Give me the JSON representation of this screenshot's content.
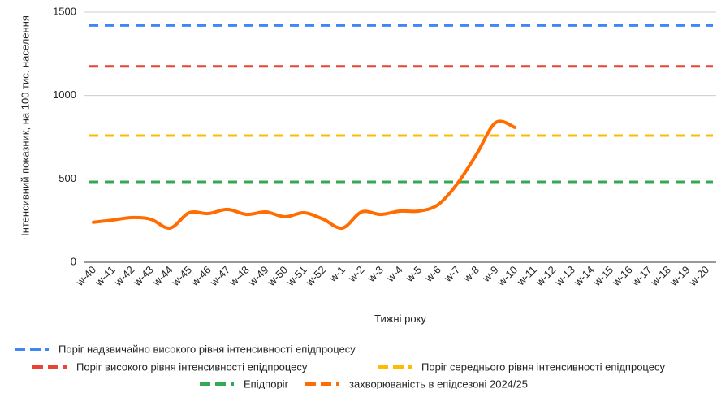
{
  "chart_data": {
    "type": "line",
    "x_label": "Тижні року",
    "y_label": "Інтенсивний показник, на 100 тис. населення",
    "categories": [
      "w-40",
      "w-41",
      "w-42",
      "w-43",
      "w-44",
      "w-45",
      "w-46",
      "w-47",
      "w-48",
      "w-49",
      "w-50",
      "w-51",
      "w-52",
      "w-1",
      "w-2",
      "w-3",
      "w-4",
      "w-5",
      "w-6",
      "w-7",
      "w-8",
      "w-9",
      "w-10",
      "w-11",
      "w-12",
      "w-13",
      "w-14",
      "w-15",
      "w-16",
      "w-17",
      "w-18",
      "w-19",
      "w-20"
    ],
    "ylim": [
      0,
      1500
    ],
    "yticks": [
      0,
      500,
      1000,
      1500
    ],
    "grid": true,
    "series": [
      {
        "name": "Поріг надзвичайно високого рівня інтенсивності епідпроцесу",
        "color": "#4285f4",
        "dashed": true,
        "values": [
          1420,
          1420,
          1420,
          1420,
          1420,
          1420,
          1420,
          1420,
          1420,
          1420,
          1420,
          1420,
          1420,
          1420,
          1420,
          1420,
          1420,
          1420,
          1420,
          1420,
          1420,
          1420,
          1420,
          1420,
          1420,
          1420,
          1420,
          1420,
          1420,
          1420,
          1420,
          1420,
          1420
        ]
      },
      {
        "name": "Поріг високого рівня інтенсивності епідпроцесу",
        "color": "#ea4335",
        "dashed": true,
        "values": [
          1175,
          1175,
          1175,
          1175,
          1175,
          1175,
          1175,
          1175,
          1175,
          1175,
          1175,
          1175,
          1175,
          1175,
          1175,
          1175,
          1175,
          1175,
          1175,
          1175,
          1175,
          1175,
          1175,
          1175,
          1175,
          1175,
          1175,
          1175,
          1175,
          1175,
          1175,
          1175,
          1175
        ]
      },
      {
        "name": "Поріг середнього рівня інтенсивності епідпроцесу",
        "color": "#fbbc04",
        "dashed": true,
        "values": [
          760,
          760,
          760,
          760,
          760,
          760,
          760,
          760,
          760,
          760,
          760,
          760,
          760,
          760,
          760,
          760,
          760,
          760,
          760,
          760,
          760,
          760,
          760,
          760,
          760,
          760,
          760,
          760,
          760,
          760,
          760,
          760,
          760
        ]
      },
      {
        "name": "Епідпоріг",
        "color": "#34a853",
        "dashed": true,
        "values": [
          482,
          482,
          482,
          482,
          482,
          482,
          482,
          482,
          482,
          482,
          482,
          482,
          482,
          482,
          482,
          482,
          482,
          482,
          482,
          482,
          482,
          482,
          482,
          482,
          482,
          482,
          482,
          482,
          482,
          482,
          482,
          482,
          482
        ]
      },
      {
        "name": "захворюваність в епідсезоні 2024/25",
        "color": "#ff6d01",
        "dashed": false,
        "values": [
          240,
          253,
          268,
          258,
          205,
          297,
          292,
          317,
          287,
          302,
          273,
          297,
          258,
          205,
          302,
          287,
          307,
          307,
          346,
          472,
          648,
          838,
          809,
          null,
          null,
          null,
          null,
          null,
          null,
          null,
          null,
          null,
          null
        ]
      }
    ]
  }
}
